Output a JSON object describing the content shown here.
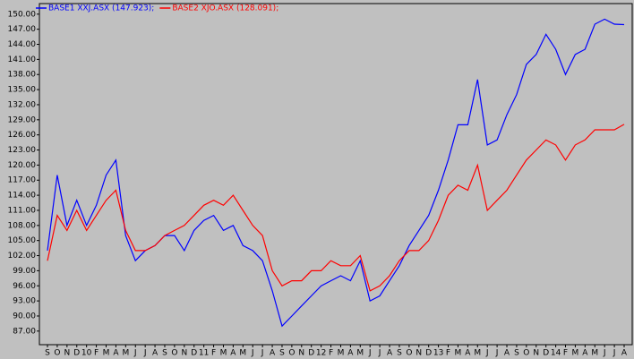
{
  "chart_data": {
    "type": "line",
    "categories": [
      "S",
      "O",
      "N",
      "D",
      "10",
      "F",
      "M",
      "A",
      "M",
      "J",
      "J",
      "A",
      "S",
      "O",
      "N",
      "D",
      "11",
      "F",
      "M",
      "A",
      "M",
      "J",
      "J",
      "A",
      "S",
      "O",
      "N",
      "D",
      "12",
      "F",
      "M",
      "A",
      "M",
      "J",
      "J",
      "A",
      "S",
      "O",
      "N",
      "D",
      "13",
      "F",
      "M",
      "A",
      "M",
      "J",
      "J",
      "A",
      "S",
      "O",
      "N",
      "D",
      "14",
      "F",
      "M",
      "A",
      "M",
      "J",
      "J",
      "A"
    ],
    "series": [
      {
        "name": "BASE1 XXJ.ASX (147.923);",
        "color": "#0000ff",
        "values": [
          103,
          118,
          108,
          113,
          108,
          112,
          118,
          121,
          106,
          101,
          103,
          104,
          106,
          106,
          103,
          107,
          109,
          110,
          107,
          108,
          104,
          103,
          101,
          95,
          88,
          90,
          92,
          94,
          96,
          97,
          98,
          97,
          101,
          93,
          94,
          97,
          100,
          104,
          107,
          110,
          115,
          121,
          128,
          128,
          137,
          124,
          125,
          130,
          134,
          140,
          142,
          146,
          143,
          138,
          142,
          143,
          148,
          149,
          148,
          147.923
        ]
      },
      {
        "name": "BASE2 XJO.ASX (128.091);",
        "color": "#ff0000",
        "values": [
          101,
          110,
          107,
          111,
          107,
          110,
          113,
          115,
          107,
          103,
          103,
          104,
          106,
          107,
          108,
          110,
          112,
          113,
          112,
          114,
          111,
          108,
          106,
          99,
          96,
          97,
          97,
          99,
          99,
          101,
          100,
          100,
          102,
          95,
          96,
          98,
          101,
          103,
          103,
          105,
          109,
          114,
          116,
          115,
          120,
          111,
          113,
          115,
          118,
          121,
          123,
          125,
          124,
          121,
          124,
          125,
          127,
          127,
          127,
          128.091
        ]
      }
    ],
    "ylim": [
      84.3,
      152.1
    ],
    "yticks": [
      {
        "value": 87,
        "label": "87.00"
      },
      {
        "value": 90,
        "label": "90.00"
      },
      {
        "value": 93,
        "label": "93.00"
      },
      {
        "value": 96,
        "label": "96.00"
      },
      {
        "value": 99,
        "label": "99.00"
      },
      {
        "value": 102,
        "label": "102.00"
      },
      {
        "value": 105,
        "label": "105.00"
      },
      {
        "value": 108,
        "label": "108.00"
      },
      {
        "value": 111,
        "label": "111.00"
      },
      {
        "value": 114,
        "label": "114.00"
      },
      {
        "value": 117,
        "label": "117.00"
      },
      {
        "value": 120,
        "label": "120.00"
      },
      {
        "value": 123,
        "label": "123.00"
      },
      {
        "value": 126,
        "label": "126.00"
      },
      {
        "value": 129,
        "label": "129.00"
      },
      {
        "value": 132,
        "label": "132.00"
      },
      {
        "value": 135,
        "label": "135.00"
      },
      {
        "value": 138,
        "label": "138.00"
      },
      {
        "value": 141,
        "label": "141.00"
      },
      {
        "value": 144,
        "label": "144.00"
      },
      {
        "value": 147,
        "label": "147.00"
      },
      {
        "value": 150,
        "label": "150.00"
      }
    ],
    "grid": false
  }
}
